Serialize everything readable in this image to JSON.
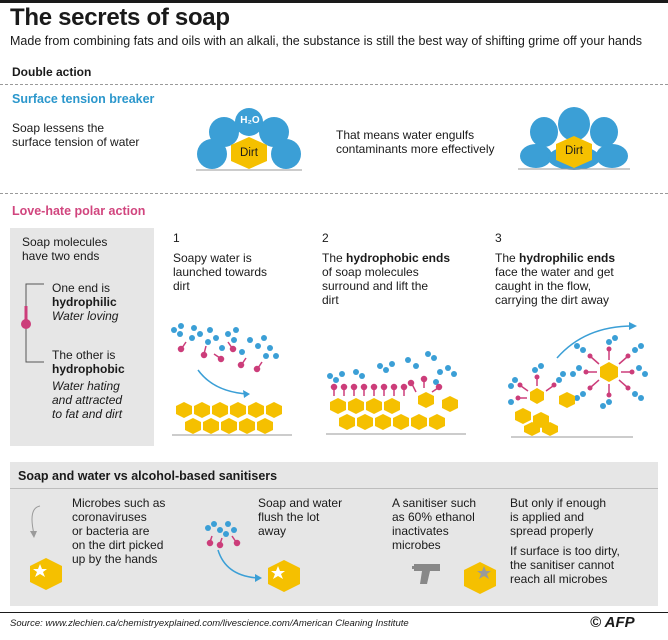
{
  "header": {
    "title": "The secrets of soap",
    "subtitle": "Made from combining fats and oils with an alkali, the substance is still the best way of shifting grime off your hands"
  },
  "double_action": {
    "heading": "Double action"
  },
  "surface_tension": {
    "heading": "Surface tension breaker",
    "left_text_1": "Soap lessens the",
    "left_text_2": "surface tension of water",
    "water_label": "H₂O",
    "dirt_label_1": "Dirt",
    "right_text_1": "That means water engulfs",
    "right_text_2": "contaminants more effectively",
    "dirt_label_2": "Dirt"
  },
  "polar_action": {
    "heading": "Love-hate polar action",
    "sidebar": {
      "intro_1": "Soap molecules",
      "intro_2": "have two ends",
      "end1_a": "One end is",
      "end1_b": "hydrophilic",
      "end1_c": "Water loving",
      "end2_a": "The other is",
      "end2_b": "hydrophobic",
      "end2_c": "Water hating",
      "end2_d": "and attracted",
      "end2_e": "to fat and dirt"
    },
    "steps": [
      {
        "number": "1",
        "line1": "Soapy water is",
        "line2": "launched towards",
        "line3": "dirt"
      },
      {
        "number": "2",
        "line1_pre": "The ",
        "line1_bold": "hydrophobic ends",
        "line2": "of soap molecules",
        "line3": "surround and lift the",
        "line4": "dirt"
      },
      {
        "number": "3",
        "line1_pre": "The ",
        "line1_bold": "hydrophilic ends",
        "line2": "face the water and get",
        "line3": "caught in the flow,",
        "line4": "carrying the dirt away"
      }
    ]
  },
  "comparison": {
    "heading": "Soap and water vs alcohol-based sanitisers",
    "col1": [
      "Microbes such as",
      "coronaviruses",
      "or bacteria are",
      "on the dirt picked",
      "up by the hands"
    ],
    "col2": [
      "Soap and water",
      "flush the lot",
      "away"
    ],
    "col3": [
      "A sanitiser such",
      "as 60% ethanol",
      "inactivates",
      "microbes"
    ],
    "col4a": [
      "But only if enough",
      "is applied and",
      "spread properly"
    ],
    "col4b": [
      "If surface is too dirty,",
      "the sanitiser cannot",
      "reach all microbes"
    ]
  },
  "footer": {
    "source": "Source: www.zlechien.ca/chemistryexplained.com/livescience.com/American Cleaning Institute",
    "credit": "AFP"
  },
  "colors": {
    "water_blue": "#3b9fd6",
    "dirt_yellow": "#f5c000",
    "soap_pink": "#cc3d7a",
    "panel_grey": "#e6e6e6",
    "heading_blue": "#2b97cc",
    "heading_pink": "#d1457e"
  }
}
